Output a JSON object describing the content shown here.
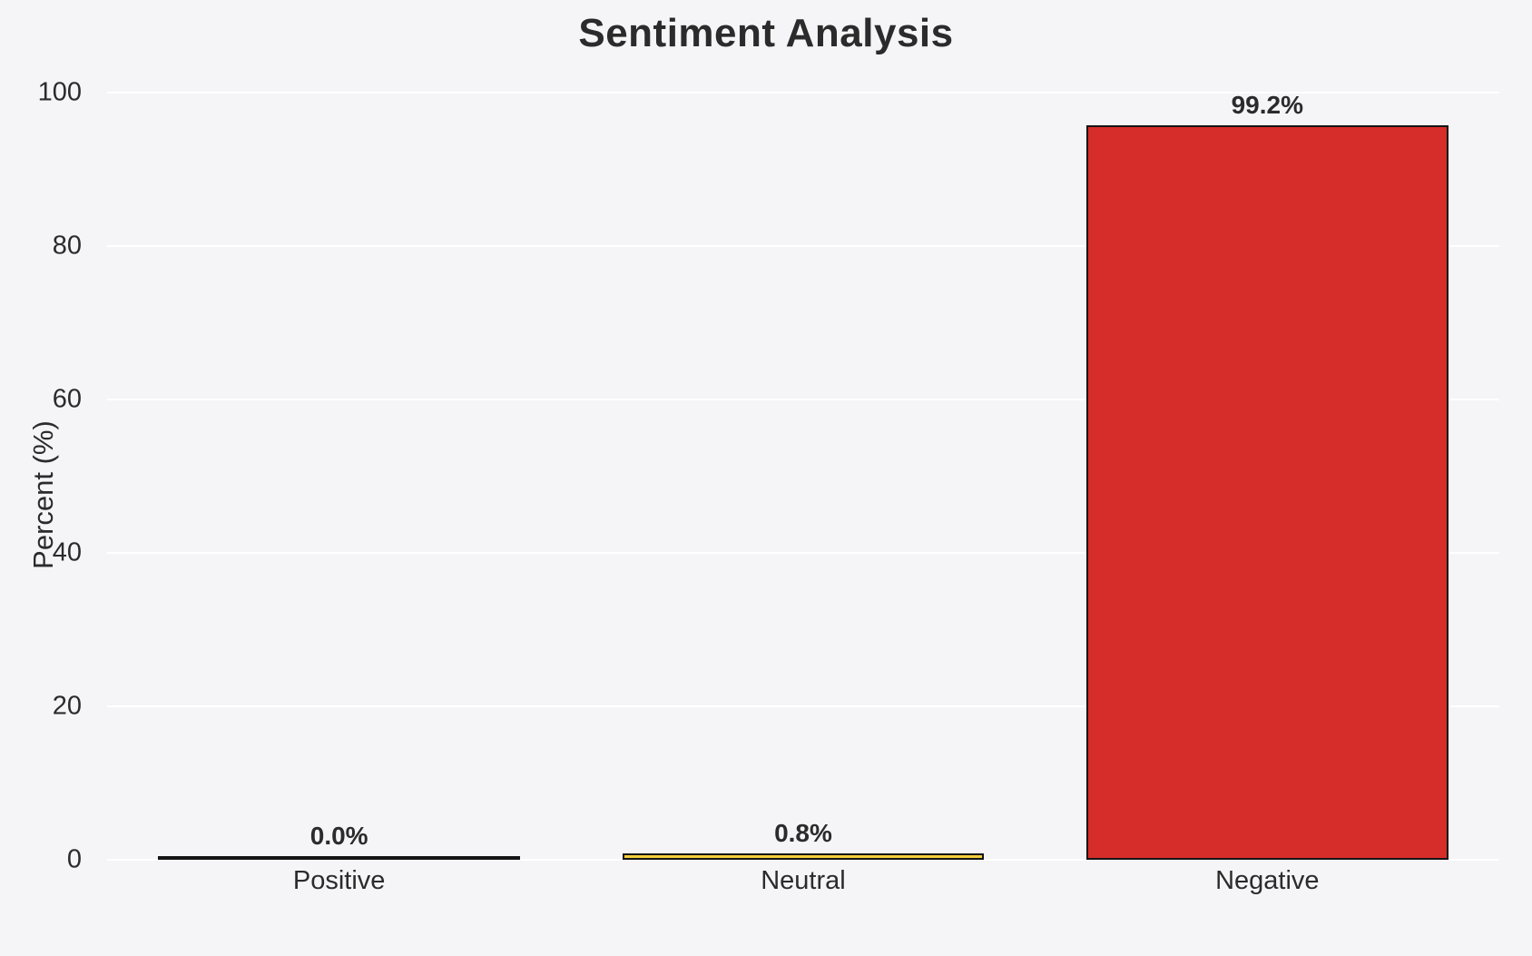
{
  "chart_data": {
    "type": "bar",
    "title": "Sentiment Analysis",
    "xlabel": "",
    "ylabel": "Percent (%)",
    "categories": [
      "Positive",
      "Neutral",
      "Negative"
    ],
    "values": [
      0.0,
      0.8,
      99.2
    ],
    "value_labels": [
      "0.0%",
      "0.8%",
      "99.2%"
    ],
    "bar_colors": [
      "#2ca02c",
      "#f4d03f",
      "#d62c2a"
    ],
    "bar_edge_color": "#141414",
    "yticks": [
      0,
      20,
      40,
      60,
      80,
      100
    ],
    "ylim": [
      0,
      100
    ],
    "grid": true,
    "legend": false,
    "background_color": "#f5f5f7",
    "gridline_color": "#ffffff",
    "text_color": "#2b2b2b"
  }
}
